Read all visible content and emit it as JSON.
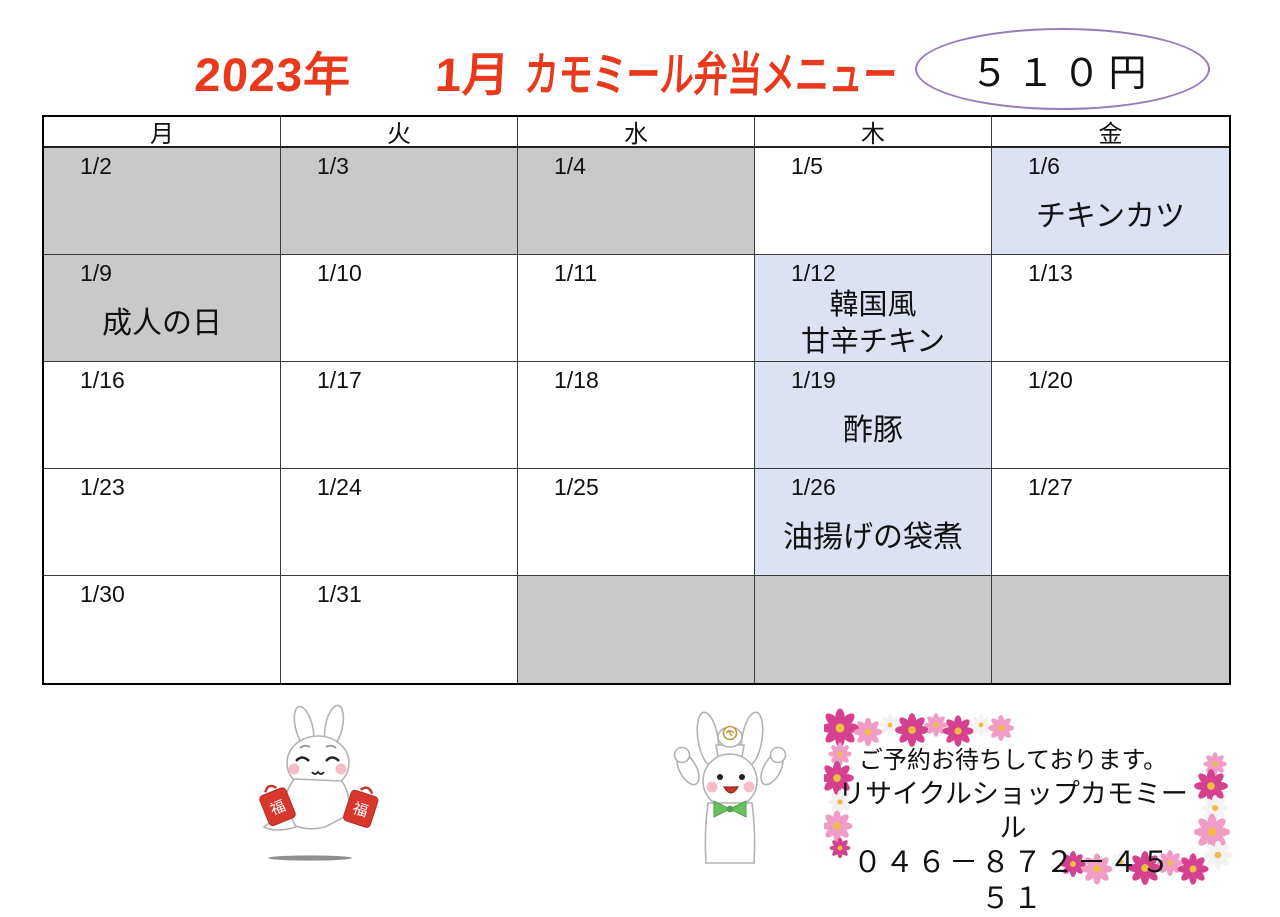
{
  "title": {
    "year": "2023年",
    "month": "1月",
    "menu_name": "カモミール弁当メニュー",
    "color": "#e8391d"
  },
  "price_badge": {
    "text": "５１０円",
    "border_color": "#9879b9"
  },
  "calendar": {
    "day_headers": [
      "月",
      "火",
      "水",
      "木",
      "金"
    ],
    "cell_colors": {
      "gray": "#c9c9c9",
      "blue": "#dce2f1",
      "white": "#ffffff"
    },
    "weeks": [
      [
        {
          "date": "1/2",
          "bg": "gray",
          "menu": []
        },
        {
          "date": "1/3",
          "bg": "gray",
          "menu": []
        },
        {
          "date": "1/4",
          "bg": "gray",
          "menu": []
        },
        {
          "date": "1/5",
          "bg": "white",
          "menu": []
        },
        {
          "date": "1/6",
          "bg": "blue",
          "menu": [
            "チキンカツ"
          ]
        }
      ],
      [
        {
          "date": "1/9",
          "bg": "gray",
          "menu": [
            "成人の日"
          ]
        },
        {
          "date": "1/10",
          "bg": "white",
          "menu": []
        },
        {
          "date": "1/11",
          "bg": "white",
          "menu": []
        },
        {
          "date": "1/12",
          "bg": "blue",
          "menu": [
            "韓国風",
            "甘辛チキン"
          ]
        },
        {
          "date": "1/13",
          "bg": "white",
          "menu": []
        }
      ],
      [
        {
          "date": "1/16",
          "bg": "white",
          "menu": []
        },
        {
          "date": "1/17",
          "bg": "white",
          "menu": []
        },
        {
          "date": "1/18",
          "bg": "white",
          "menu": []
        },
        {
          "date": "1/19",
          "bg": "blue",
          "menu": [
            "酢豚"
          ]
        },
        {
          "date": "1/20",
          "bg": "white",
          "menu": []
        }
      ],
      [
        {
          "date": "1/23",
          "bg": "white",
          "menu": []
        },
        {
          "date": "1/24",
          "bg": "white",
          "menu": []
        },
        {
          "date": "1/25",
          "bg": "white",
          "menu": []
        },
        {
          "date": "1/26",
          "bg": "blue",
          "menu": [
            "油揚げの袋煮"
          ]
        },
        {
          "date": "1/27",
          "bg": "white",
          "menu": []
        }
      ],
      [
        {
          "date": "1/30",
          "bg": "white",
          "menu": []
        },
        {
          "date": "1/31",
          "bg": "white",
          "menu": []
        },
        {
          "date": "",
          "bg": "gray",
          "menu": []
        },
        {
          "date": "",
          "bg": "gray",
          "menu": []
        },
        {
          "date": "",
          "bg": "gray",
          "menu": []
        }
      ]
    ]
  },
  "footer": {
    "reservation_note": "ご予約お待ちしております。",
    "shop_name": "リサイクルショップカモミール",
    "phone": "０４６－８７２－４５５１"
  },
  "illustrations": {
    "lucky_bag_char": "福",
    "rabbit_lucky_bags": "white rabbit jumping with two red fuku lucky bags",
    "rabbit_banzai": "white rabbit with raised arms, mochi hat and green bow tie",
    "flower_corners": "pink cosmos flower corner borders"
  }
}
